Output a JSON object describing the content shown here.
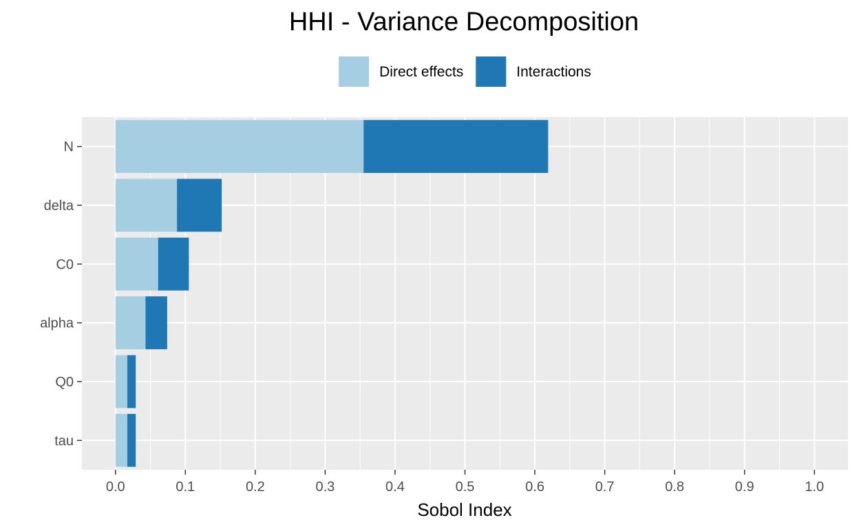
{
  "chart_data": {
    "type": "bar",
    "orientation": "horizontal",
    "stacked": true,
    "title": "HHI - Variance Decomposition",
    "xlabel": "Sobol Index",
    "ylabel": "",
    "xlim": [
      -0.048,
      1.048
    ],
    "xticks": [
      "0.0",
      "0.1",
      "0.2",
      "0.3",
      "0.4",
      "0.5",
      "0.6",
      "0.7",
      "0.8",
      "0.9",
      "1.0"
    ],
    "categories": [
      "N",
      "delta",
      "C0",
      "alpha",
      "Q0",
      "tau"
    ],
    "series": [
      {
        "name": "Direct effects",
        "color": "#a6cee3",
        "values": [
          0.355,
          0.088,
          0.061,
          0.043,
          0.017,
          0.017
        ]
      },
      {
        "name": "Interactions",
        "color": "#1f78b4",
        "values": [
          0.264,
          0.064,
          0.044,
          0.031,
          0.012,
          0.012
        ]
      }
    ],
    "legend_position": "top",
    "grid": true,
    "panel_background": "#ebebeb",
    "grid_color": "#ffffff"
  }
}
